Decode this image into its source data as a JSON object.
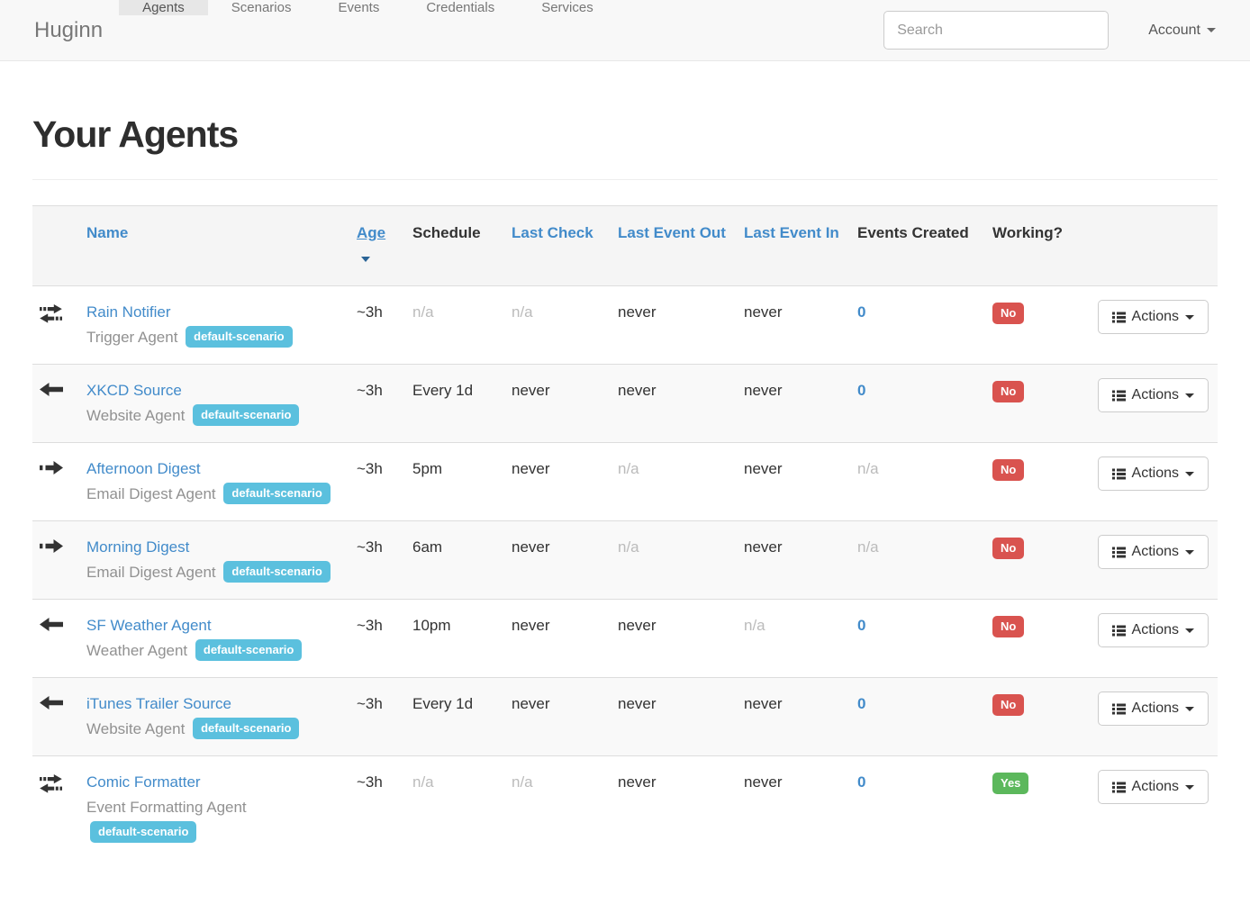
{
  "navbar": {
    "brand": "Huginn",
    "items": [
      {
        "label": "Agents",
        "active": true
      },
      {
        "label": "Scenarios",
        "active": false
      },
      {
        "label": "Events",
        "active": false
      },
      {
        "label": "Credentials",
        "active": false
      },
      {
        "label": "Services",
        "active": false
      }
    ],
    "search_placeholder": "Search",
    "account_label": "Account"
  },
  "page": {
    "title": "Your Agents"
  },
  "table": {
    "headers": {
      "name": "Name",
      "age": "Age",
      "schedule": "Schedule",
      "last_check": "Last Check",
      "last_event_out": "Last Event Out",
      "last_event_in": "Last Event In",
      "events_created": "Events Created",
      "working": "Working?"
    },
    "actions_label": "Actions",
    "rows": [
      {
        "icon": "both-arrows",
        "name": "Rain Notifier",
        "type": "Trigger Agent",
        "scenario": "default-scenario",
        "age": "~3h",
        "schedule": "n/a",
        "last_check": "n/a",
        "last_event_out": "never",
        "last_event_in": "never",
        "events_created": "0",
        "working": "No"
      },
      {
        "icon": "left-arrow",
        "name": "XKCD Source",
        "type": "Website Agent",
        "scenario": "default-scenario",
        "age": "~3h",
        "schedule": "Every 1d",
        "last_check": "never",
        "last_event_out": "never",
        "last_event_in": "never",
        "events_created": "0",
        "working": "No"
      },
      {
        "icon": "right-arrow",
        "name": "Afternoon Digest",
        "type": "Email Digest Agent",
        "scenario": "default-scenario",
        "age": "~3h",
        "schedule": "5pm",
        "last_check": "never",
        "last_event_out": "n/a",
        "last_event_in": "never",
        "events_created": "n/a",
        "working": "No"
      },
      {
        "icon": "right-arrow",
        "name": "Morning Digest",
        "type": "Email Digest Agent",
        "scenario": "default-scenario",
        "age": "~3h",
        "schedule": "6am",
        "last_check": "never",
        "last_event_out": "n/a",
        "last_event_in": "never",
        "events_created": "n/a",
        "working": "No"
      },
      {
        "icon": "left-arrow",
        "name": "SF Weather Agent",
        "type": "Weather Agent",
        "scenario": "default-scenario",
        "age": "~3h",
        "schedule": "10pm",
        "last_check": "never",
        "last_event_out": "never",
        "last_event_in": "n/a",
        "events_created": "0",
        "working": "No"
      },
      {
        "icon": "left-arrow",
        "name": "iTunes Trailer Source",
        "type": "Website Agent",
        "scenario": "default-scenario",
        "age": "~3h",
        "schedule": "Every 1d",
        "last_check": "never",
        "last_event_out": "never",
        "last_event_in": "never",
        "events_created": "0",
        "working": "No"
      },
      {
        "icon": "both-arrows",
        "name": "Comic Formatter",
        "type": "Event Formatting Agent",
        "scenario": "default-scenario",
        "age": "~3h",
        "schedule": "n/a",
        "last_check": "n/a",
        "last_event_out": "never",
        "last_event_in": "never",
        "events_created": "0",
        "working": "Yes"
      }
    ]
  },
  "colors": {
    "accent": "#428bca",
    "badge_info": "#5bc0de",
    "status_no": "#d9534f",
    "status_yes": "#5cb85c",
    "navbar_bg": "#f8f8f8",
    "nav_active_bg": "#e7e7e7"
  }
}
